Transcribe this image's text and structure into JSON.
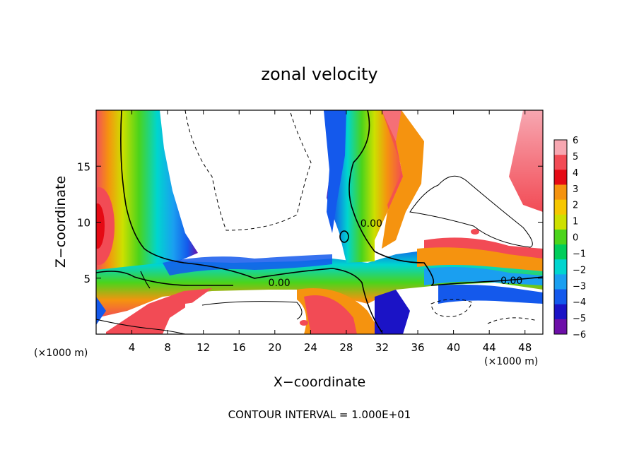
{
  "chart_data": {
    "type": "heatmap",
    "title": "zonal velocity",
    "xlabel": "X−coordinate",
    "ylabel": "Z−coordinate",
    "x_unit_left": "(×1000 m)",
    "x_unit_right": "(×1000 m)",
    "footer": "CONTOUR INTERVAL = 1.000E+01",
    "xlim": [
      0,
      50
    ],
    "ylim": [
      0,
      20
    ],
    "x_ticks": [
      4,
      8,
      12,
      16,
      20,
      24,
      28,
      32,
      36,
      40,
      44,
      48
    ],
    "y_ticks": [
      5,
      10,
      15
    ],
    "contour_labels": [
      {
        "text": "0.00",
        "x": 20.5,
        "y": 4.6
      },
      {
        "text": "0.00",
        "x": 30.8,
        "y": 9.9
      },
      {
        "text": "0.00",
        "x": 46.5,
        "y": 4.8
      }
    ],
    "colorbar": {
      "levels": [
        6,
        5,
        4,
        3,
        2,
        1,
        0,
        -1,
        -2,
        -3,
        -4,
        -5,
        -6
      ],
      "colors": [
        "#f7a7b1",
        "#f24b55",
        "#e50a14",
        "#f5930f",
        "#f6c700",
        "#cde000",
        "#4bd41b",
        "#00cd5a",
        "#00d5cf",
        "#1a9ff0",
        "#1459ec",
        "#1b13c6",
        "#6d0fa8"
      ]
    },
    "grid": false
  }
}
